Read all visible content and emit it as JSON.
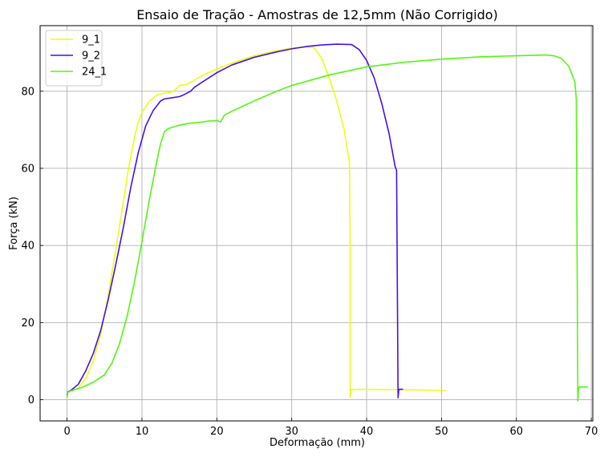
{
  "chart_data": {
    "type": "line",
    "title": "Ensaio de Tração - Amostras de 12,5mm (Não Corrigido)",
    "xlabel": "Deformação (mm)",
    "ylabel": "Força (kN)",
    "xlim": [
      -3.6,
      70.2
    ],
    "ylim": [
      -5.5,
      97
    ],
    "xticks": [
      0,
      10,
      20,
      30,
      40,
      50,
      60,
      70
    ],
    "yticks": [
      0,
      20,
      40,
      60,
      80
    ],
    "grid": true,
    "legend_position": "top-left",
    "series": [
      {
        "name": "9_1",
        "color": "#eaff10",
        "x": [
          0,
          0.1,
          0.5,
          1.5,
          2.5,
          3.5,
          4.5,
          5.5,
          6.5,
          7.5,
          8.2,
          9,
          9.5,
          10,
          11,
          12,
          13,
          14,
          14.5,
          15,
          16,
          16.5,
          18,
          20,
          22,
          25,
          28,
          30,
          32,
          33,
          34,
          35,
          36,
          37,
          37.7,
          37.8,
          37.8,
          37.9,
          38.5,
          40,
          45,
          50.5
        ],
        "y": [
          0.5,
          2.0,
          2.3,
          3.0,
          5.5,
          10.0,
          17.0,
          27.0,
          39.0,
          51.0,
          60.0,
          68.0,
          72.0,
          74.5,
          77.5,
          79.0,
          79.5,
          79.8,
          80.5,
          81.5,
          81.8,
          82.3,
          84.0,
          85.8,
          87.3,
          89.2,
          90.5,
          91.2,
          91.5,
          91.3,
          88.5,
          83.5,
          77.5,
          70.0,
          61.5,
          40.0,
          0.6,
          2.6,
          2.7,
          2.7,
          2.6,
          2.4
        ]
      },
      {
        "name": "9_2",
        "color": "#4510e8",
        "x": [
          0,
          0.1,
          0.5,
          1.5,
          2.5,
          3.5,
          4.5,
          5.5,
          6.5,
          7.5,
          8.5,
          9.5,
          10.5,
          11.5,
          12.5,
          13,
          14,
          15,
          15.5,
          16,
          16.5,
          17,
          18,
          20,
          22,
          25,
          28,
          30,
          32,
          34,
          36,
          38,
          39,
          40,
          41,
          42,
          43,
          43.8,
          44,
          44.1,
          44.2,
          44.3,
          44.8
        ],
        "y": [
          1.2,
          2.0,
          2.4,
          4.0,
          7.5,
          12.0,
          18.0,
          26.0,
          35.0,
          44.5,
          55.0,
          64.0,
          71.0,
          75.0,
          77.5,
          78.0,
          78.3,
          78.6,
          79.0,
          79.5,
          80.0,
          81.0,
          82.3,
          84.8,
          86.8,
          88.8,
          90.2,
          91.0,
          91.6,
          92.0,
          92.2,
          92.1,
          90.8,
          88.0,
          83.5,
          77.0,
          69.0,
          60.5,
          59.5,
          30.0,
          0.5,
          2.7,
          2.7
        ]
      },
      {
        "name": "24_1",
        "color": "#55f513",
        "x": [
          0,
          0.1,
          0.5,
          2,
          3.5,
          5,
          6,
          7,
          8,
          9,
          10,
          11,
          12,
          12.5,
          13,
          13.5,
          14,
          15,
          16,
          17,
          18,
          19,
          20,
          20.5,
          21,
          22,
          25,
          28,
          30,
          35,
          40,
          45,
          50,
          55,
          60,
          64,
          65,
          66,
          67,
          67.8,
          68,
          68.1,
          68.2,
          68.3,
          68.4,
          69.5
        ],
        "y": [
          0.6,
          1.9,
          2.3,
          3.2,
          4.5,
          6.5,
          9.5,
          14.5,
          21.5,
          30.5,
          41.0,
          52.0,
          62.0,
          66.5,
          69.5,
          70.3,
          70.6,
          71.2,
          71.6,
          71.8,
          72.0,
          72.3,
          72.4,
          72.0,
          73.8,
          74.8,
          77.5,
          80.0,
          81.5,
          84.2,
          86.3,
          87.5,
          88.3,
          88.9,
          89.2,
          89.4,
          89.2,
          88.5,
          86.5,
          82.5,
          78.0,
          40.0,
          -0.3,
          3.0,
          3.3,
          3.3
        ]
      }
    ]
  }
}
